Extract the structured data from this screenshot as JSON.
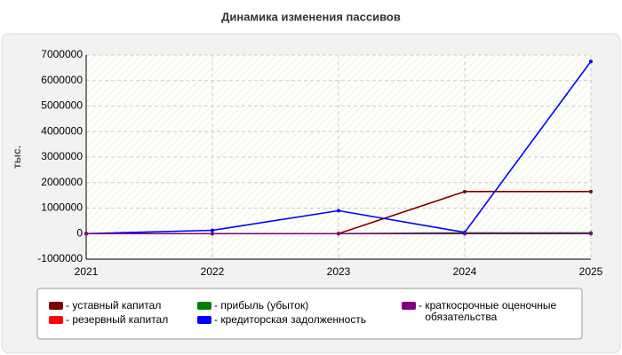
{
  "chart_data": {
    "type": "line",
    "title": "Динамика изменения пассивов",
    "y_label": "тыс.",
    "categories": [
      "2021",
      "2022",
      "2023",
      "2024",
      "2025"
    ],
    "series": [
      {
        "name": "уставный капитал",
        "color": "#800000",
        "values": [
          0,
          0,
          0,
          1650000,
          1650000
        ]
      },
      {
        "name": "резервный капитал",
        "color": "#ff0000",
        "values": [
          0,
          0,
          0,
          0,
          0
        ]
      },
      {
        "name": "прибыль (убыток)",
        "color": "#008000",
        "values": [
          0,
          0,
          0,
          30000,
          30000
        ]
      },
      {
        "name": "кредиторская задолженность",
        "color": "#0000ff",
        "values": [
          0,
          130000,
          900000,
          50000,
          6750000
        ]
      },
      {
        "name": "краткосрочные оценочные обязательства",
        "color": "#800080",
        "values": [
          0,
          0,
          0,
          0,
          0
        ]
      }
    ],
    "ylim": [
      -1000000,
      7000000
    ],
    "yticks": [
      -1000000,
      0,
      1000000,
      2000000,
      3000000,
      4000000,
      5000000,
      6000000,
      7000000
    ],
    "grid": true
  }
}
